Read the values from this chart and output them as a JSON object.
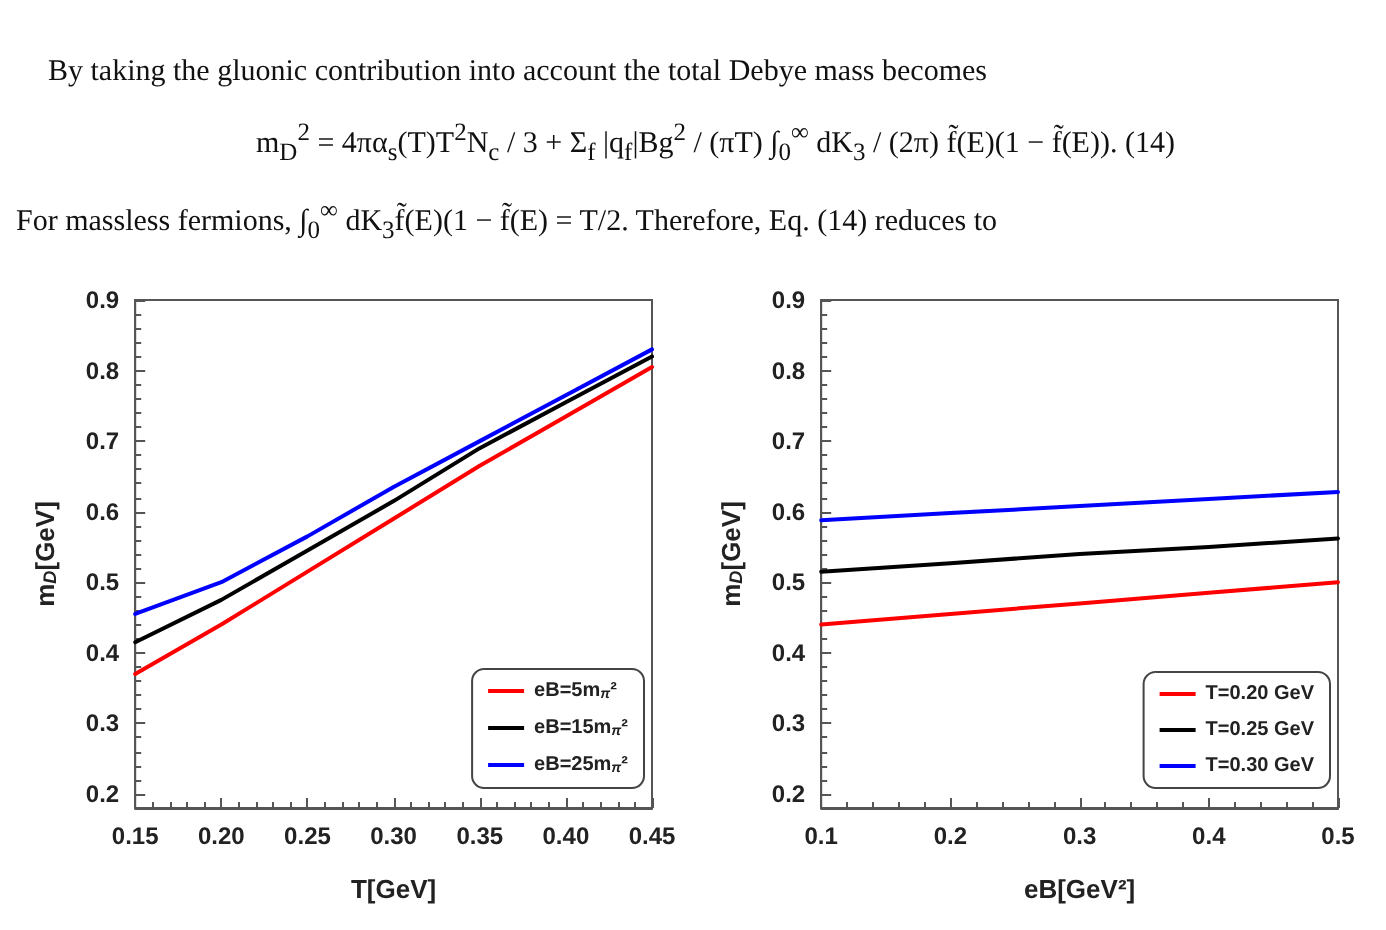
{
  "chart_data": [
    {
      "type": "line",
      "xlabel": "T[GeV]",
      "ylabel": "m$_{D}$[GeV]",
      "annotations": [
        "By taking the gluonic contribution into account the total Debye mass becomes",
        "m$_{D}$$^{2}$ = 4πα$_{s}$(T)T$^{2}$N$_{c}$ / 3 + Σ$_{f}$ |q$_{f}$|Bg$^{2}$ / (πT) ∫$_{0}$$^{∞}$ dK$_{3}$ / (2π) f̃(E)(1 − f̃(E)).      (14)",
        "For massless fermions, ∫$_{0}$$^{∞}$ dK$_{3}$f̃(E)(1 − f̃(E) = T/2. Therefore, Eq. (14) reduces to"
      ],
      "x": [
        0.15,
        0.2,
        0.25,
        0.3,
        0.35,
        0.4,
        0.45
      ],
      "series": [
        {
          "name": "eB=5m$_{π}$²",
          "color": "#ff0000",
          "values": [
            0.37,
            0.44,
            0.515,
            0.59,
            0.665,
            0.735,
            0.805
          ]
        },
        {
          "name": "eB=15m$_{π}$²",
          "color": "#000000",
          "values": [
            0.415,
            0.475,
            0.545,
            0.615,
            0.69,
            0.755,
            0.82
          ]
        },
        {
          "name": "eB=25m$_{π}$²",
          "color": "#0000ff",
          "values": [
            0.455,
            0.5,
            0.565,
            0.635,
            0.7,
            0.765,
            0.83
          ]
        }
      ],
      "xlim": [
        0.15,
        0.45
      ],
      "xticks": [
        {
          "value": 0.15,
          "label": "0.15"
        },
        {
          "value": 0.2,
          "label": "0.20"
        },
        {
          "value": 0.25,
          "label": "0.25"
        },
        {
          "value": 0.3,
          "label": "0.30"
        },
        {
          "value": 0.35,
          "label": "0.35"
        },
        {
          "value": 0.4,
          "label": "0.40"
        },
        {
          "value": 0.45,
          "label": "0.45"
        }
      ],
      "ylim": [
        0.18,
        0.9
      ],
      "yticks": [
        0.2,
        0.3,
        0.4,
        0.5,
        0.6,
        0.7,
        0.8,
        0.9
      ],
      "grid": false,
      "legend": "bottom right",
      "marker": "none",
      "line_style": "solid"
    },
    {
      "type": "line",
      "xlabel": "eB[GeV²]",
      "ylabel": "m$_{D}$[GeV]",
      "x": [
        0.1,
        0.2,
        0.3,
        0.4,
        0.5
      ],
      "series": [
        {
          "name": "T=0.20 GeV",
          "color": "#ff0000",
          "values": [
            0.44,
            0.455,
            0.47,
            0.485,
            0.5
          ]
        },
        {
          "name": "T=0.25 GeV",
          "color": "#000000",
          "values": [
            0.515,
            0.527,
            0.54,
            0.55,
            0.562
          ]
        },
        {
          "name": "T=0.30 GeV",
          "color": "#0000ff",
          "values": [
            0.588,
            0.598,
            0.608,
            0.618,
            0.628
          ]
        }
      ],
      "xlim": [
        0.1,
        0.5
      ],
      "xticks": [
        0.1,
        0.2,
        0.3,
        0.4,
        0.5
      ],
      "ylim": [
        0.18,
        0.9
      ],
      "yticks": [
        0.2,
        0.3,
        0.4,
        0.5,
        0.6,
        0.7,
        0.8,
        0.9
      ],
      "grid": false,
      "legend": "bottom right",
      "marker": "none",
      "line_style": "solid"
    }
  ]
}
